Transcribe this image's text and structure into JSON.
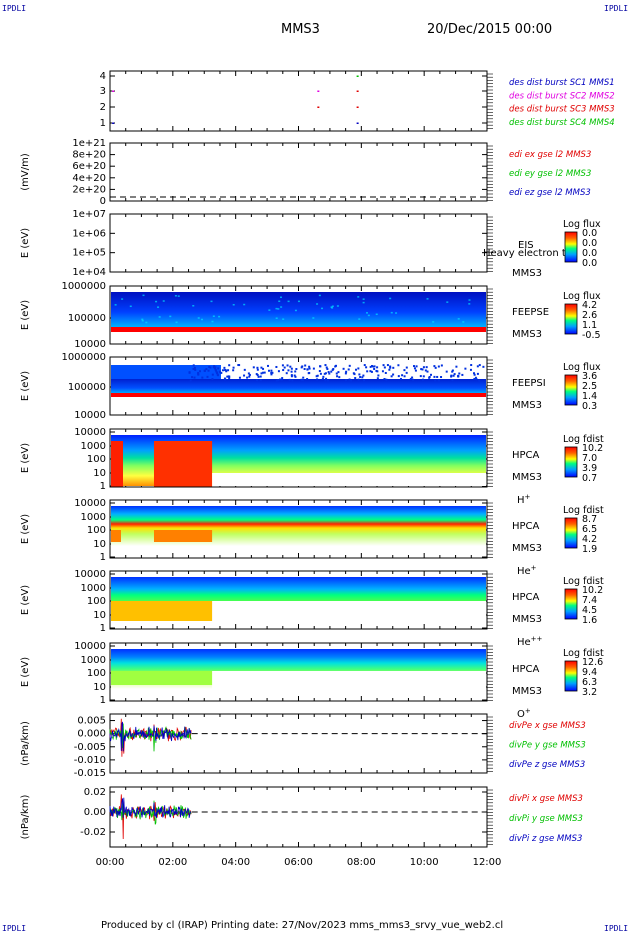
{
  "header": {
    "corner_tl": "IPDLI",
    "corner_tr": "IPDLI",
    "corner_bl": "IPDLI",
    "corner_br": "IPDLI",
    "spacecraft": "MMS3",
    "datetime": "20/Dec/2015 00:00"
  },
  "footer": {
    "text": "Produced by cl (IRAP)   Printing date: 27/Nov/2023   mms_mms3_srvy_vue_web2.cl"
  },
  "colors": {
    "red": "#e00000",
    "green": "#00c000",
    "blue": "#0000c0",
    "magenta": "#e000e0"
  },
  "xaxis": {
    "ticks": [
      "00:00",
      "02:00",
      "04:00",
      "06:00",
      "08:00",
      "10:00",
      "12:00"
    ],
    "range_hours": [
      0,
      12
    ]
  },
  "chart_data": [
    {
      "type": "scatter",
      "id": "burst",
      "yticks": [
        "4",
        "3",
        "2",
        "1"
      ],
      "ylim": [
        0.5,
        4.5
      ],
      "legend": [
        {
          "label": "des dist burst SC1 MMS1",
          "color": "#0000c0"
        },
        {
          "label": "des dist burst SC2 MMS2",
          "color": "#e000e0"
        },
        {
          "label": "des dist burst SC3 MMS3",
          "color": "#e00000"
        },
        {
          "label": "des dist burst SC4 MMS4",
          "color": "#00c000"
        }
      ]
    },
    {
      "type": "line",
      "id": "edi",
      "ylabel": "(mV/m)",
      "yticks": [
        "1e+21",
        "8e+20",
        "6e+20",
        "4e+20",
        "2e+20",
        "0"
      ],
      "legend": [
        {
          "label": "edi ex gse l2 MMS3",
          "color": "#e00000"
        },
        {
          "label": "edi ey gse l2 MMS3",
          "color": "#00c000"
        },
        {
          "label": "edi ez gse l2 MMS3",
          "color": "#0000c0"
        }
      ]
    },
    {
      "type": "heatmap",
      "id": "eis",
      "ylabel": "E (eV)",
      "yticks": [
        "1e+07",
        "1e+06",
        "1e+05",
        "1e+04"
      ],
      "instrument": "EIS",
      "instrument_sub": "MMS3",
      "overlay": "Heavy electron tof",
      "cbar_title": "Log flux",
      "cbar_ticks": [
        "0.0",
        "0.0",
        "0.0",
        "0.0"
      ]
    },
    {
      "type": "heatmap",
      "id": "feepse",
      "ylabel": "E (eV)",
      "yticks": [
        "1000000",
        "100000",
        "10000"
      ],
      "instrument": "FEEPSE",
      "instrument_sub": "MMS3",
      "cbar_title": "Log flux",
      "cbar_ticks": [
        "4.2",
        "2.6",
        "1.1",
        "-0.5"
      ]
    },
    {
      "type": "heatmap",
      "id": "feepsi",
      "ylabel": "E (eV)",
      "yticks": [
        "1000000",
        "100000",
        "10000"
      ],
      "instrument": "FEEPSI",
      "instrument_sub": "MMS3",
      "cbar_title": "Log flux",
      "cbar_ticks": [
        "3.6",
        "2.5",
        "1.4",
        "0.3"
      ]
    },
    {
      "type": "heatmap",
      "id": "hpca_h",
      "ylabel": "E (eV)",
      "yticks": [
        "10000",
        "1000",
        "100",
        "10",
        "1"
      ],
      "instrument": "HPCA",
      "instrument_sub": "MMS3",
      "species": "H",
      "species_sup": "+",
      "cbar_title": "Log fdist",
      "cbar_ticks": [
        "10.2",
        "7.0",
        "3.9",
        "0.7"
      ]
    },
    {
      "type": "heatmap",
      "id": "hpca_he",
      "ylabel": "E (eV)",
      "yticks": [
        "10000",
        "1000",
        "100",
        "10",
        "1"
      ],
      "instrument": "HPCA",
      "instrument_sub": "MMS3",
      "species": "He",
      "species_sup": "+",
      "cbar_title": "Log fdist",
      "cbar_ticks": [
        "8.7",
        "6.5",
        "4.2",
        "1.9"
      ]
    },
    {
      "type": "heatmap",
      "id": "hpca_hepp",
      "ylabel": "E (eV)",
      "yticks": [
        "10000",
        "1000",
        "100",
        "10",
        "1"
      ],
      "instrument": "HPCA",
      "instrument_sub": "MMS3",
      "species": "He",
      "species_sup": "++",
      "cbar_title": "Log fdist",
      "cbar_ticks": [
        "10.2",
        "7.4",
        "4.5",
        "1.6"
      ]
    },
    {
      "type": "heatmap",
      "id": "hpca_o",
      "ylabel": "E (eV)",
      "yticks": [
        "10000",
        "1000",
        "100",
        "10",
        "1"
      ],
      "instrument": "HPCA",
      "instrument_sub": "MMS3",
      "species": "O",
      "species_sup": "+",
      "cbar_title": "Log fdist",
      "cbar_ticks": [
        "12.6",
        "9.4",
        "6.3",
        "3.2"
      ]
    },
    {
      "type": "line",
      "id": "divpe",
      "ylabel": "(nPa/km)",
      "yticks": [
        "0.005",
        "0.000",
        "-0.005",
        "-0.010",
        "-0.015"
      ],
      "ylim": [
        -0.015,
        0.0075
      ],
      "legend": [
        {
          "label": "divPe x gse MMS3",
          "color": "#e00000"
        },
        {
          "label": "divPe y gse MMS3",
          "color": "#00c000"
        },
        {
          "label": "divPe z gse MMS3",
          "color": "#0000c0"
        }
      ]
    },
    {
      "type": "line",
      "id": "divpi",
      "ylabel": "(nPa/km)",
      "yticks": [
        "0.02",
        "0.00",
        "-0.02"
      ],
      "ylim": [
        -0.035,
        0.025
      ],
      "legend": [
        {
          "label": "divPi x gse MMS3",
          "color": "#e00000"
        },
        {
          "label": "divPi y gse MMS3",
          "color": "#00c000"
        },
        {
          "label": "divPi z gse MMS3",
          "color": "#0000c0"
        }
      ]
    }
  ]
}
